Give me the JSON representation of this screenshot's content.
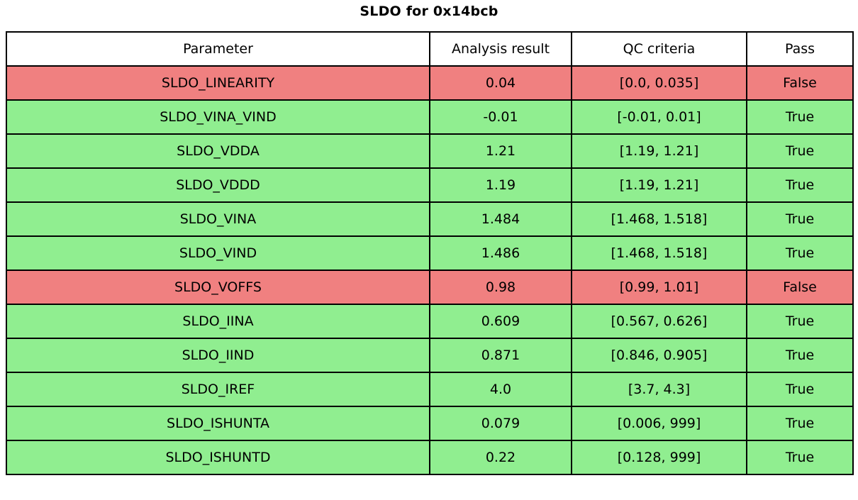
{
  "chart_data": {
    "type": "table",
    "title": "SLDO for 0x14bcb",
    "columns": [
      "Parameter",
      "Analysis result",
      "QC criteria",
      "Pass"
    ],
    "rows": [
      {
        "parameter": "SLDO_LINEARITY",
        "result": "0.04",
        "criteria": "[0.0, 0.035]",
        "pass": "False"
      },
      {
        "parameter": "SLDO_VINA_VIND",
        "result": "-0.01",
        "criteria": "[-0.01, 0.01]",
        "pass": "True"
      },
      {
        "parameter": "SLDO_VDDA",
        "result": "1.21",
        "criteria": "[1.19, 1.21]",
        "pass": "True"
      },
      {
        "parameter": "SLDO_VDDD",
        "result": "1.19",
        "criteria": "[1.19, 1.21]",
        "pass": "True"
      },
      {
        "parameter": "SLDO_VINA",
        "result": "1.484",
        "criteria": "[1.468, 1.518]",
        "pass": "True"
      },
      {
        "parameter": "SLDO_VIND",
        "result": "1.486",
        "criteria": "[1.468, 1.518]",
        "pass": "True"
      },
      {
        "parameter": "SLDO_VOFFS",
        "result": "0.98",
        "criteria": "[0.99, 1.01]",
        "pass": "False"
      },
      {
        "parameter": "SLDO_IINA",
        "result": "0.609",
        "criteria": "[0.567, 0.626]",
        "pass": "True"
      },
      {
        "parameter": "SLDO_IIND",
        "result": "0.871",
        "criteria": "[0.846, 0.905]",
        "pass": "True"
      },
      {
        "parameter": "SLDO_IREF",
        "result": "4.0",
        "criteria": "[3.7, 4.3]",
        "pass": "True"
      },
      {
        "parameter": "SLDO_ISHUNTA",
        "result": "0.079",
        "criteria": "[0.006, 999]",
        "pass": "True"
      },
      {
        "parameter": "SLDO_ISHUNTD",
        "result": "0.22",
        "criteria": "[0.128, 999]",
        "pass": "True"
      }
    ],
    "row_colors": {
      "True": "#90ee90",
      "False": "#f08080"
    },
    "header_bg": "#ffffff",
    "border_color": "#000000",
    "legend_position": "none",
    "grid": "table-borders"
  }
}
